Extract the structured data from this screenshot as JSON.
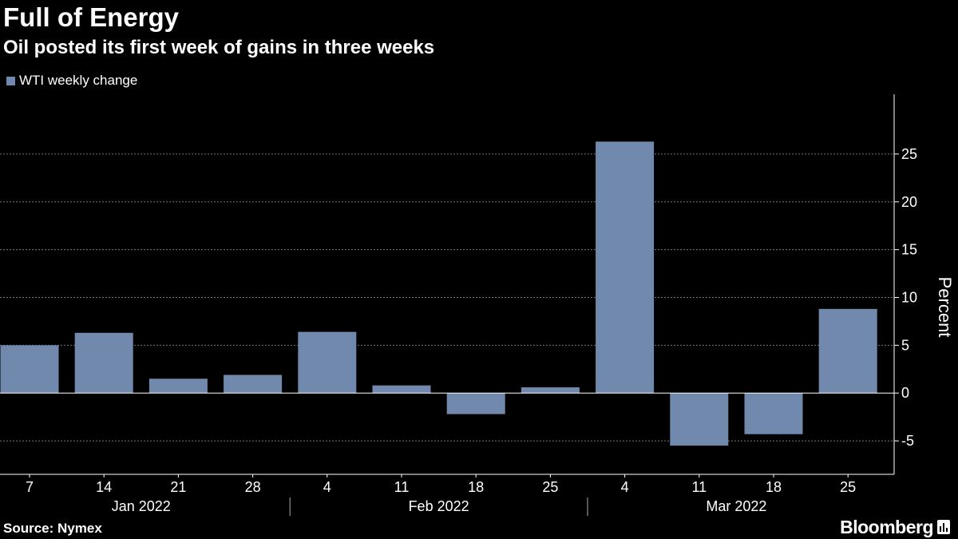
{
  "header": {
    "title": "Full of Energy",
    "subtitle": "Oil posted its first week of gains in three weeks"
  },
  "legend": {
    "label": "WTI weekly change",
    "color": "#7189ad"
  },
  "footer": {
    "source": "Source: Nymex",
    "brand": "Bloomberg",
    "brand_icon": "bar-chart-logo-icon"
  },
  "colors": {
    "background": "#000000",
    "bar": "#7189ad",
    "gridline": "#777777",
    "axis": "#ffffff",
    "text": "#ffffff"
  },
  "chart_data": {
    "type": "bar",
    "categories": [
      "7",
      "14",
      "21",
      "28",
      "4",
      "11",
      "18",
      "25",
      "4",
      "11",
      "18",
      "25"
    ],
    "groups": [
      {
        "label": "Jan 2022",
        "categories": 4
      },
      {
        "label": "Feb 2022",
        "categories": 4
      },
      {
        "label": "Mar 2022",
        "categories": 4
      }
    ],
    "series": [
      {
        "name": "WTI weekly change",
        "values": [
          5.0,
          6.3,
          1.5,
          1.9,
          6.4,
          0.8,
          -2.2,
          0.6,
          26.3,
          -5.5,
          -4.3,
          8.8
        ]
      }
    ],
    "ylabel": "Percent",
    "ylim": [
      -8.5,
      29
    ],
    "yticks": [
      -5,
      0,
      5,
      10,
      15,
      20,
      25
    ],
    "ytick_labels": [
      "-5",
      "0",
      "5",
      "10",
      "15",
      "20",
      "25"
    ],
    "grid": true,
    "y_axis_side": "right",
    "legend_position": "top-left"
  }
}
